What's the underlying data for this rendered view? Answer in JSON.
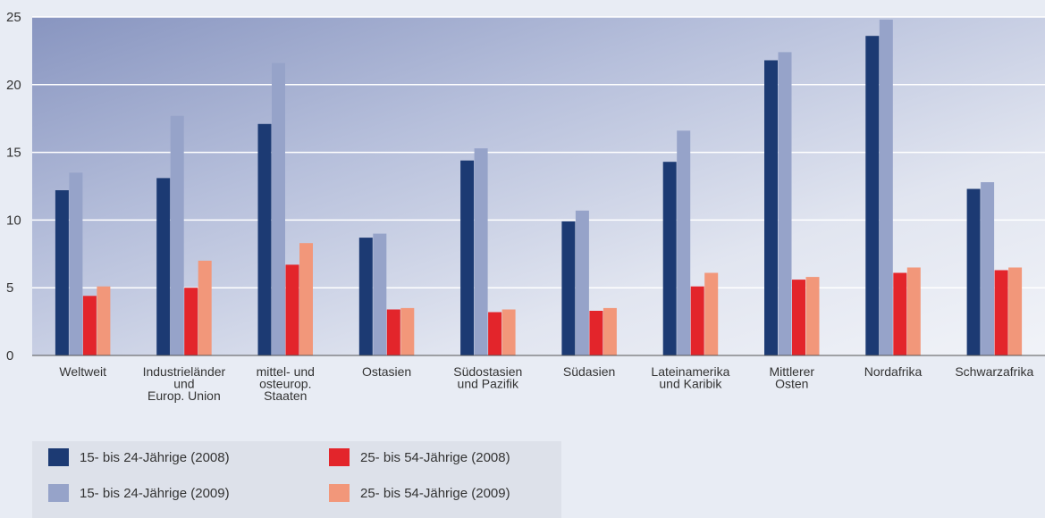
{
  "chart_data": {
    "type": "bar",
    "categories": [
      "Weltweit",
      "Industrieländer und Europ. Union",
      "mittel- und osteurop. Staaten",
      "Ostasien",
      "Südostasien und Pazifik",
      "Südasien",
      "Lateinamerika und Karibik",
      "Mittlerer Osten",
      "Nordafrika",
      "Schwarzafrika"
    ],
    "category_lines": [
      [
        "Weltweit"
      ],
      [
        "Industrieländer",
        "und",
        "Europ. Union"
      ],
      [
        "mittel- und",
        "osteurop.",
        "Staaten"
      ],
      [
        "Ostasien"
      ],
      [
        "Südostasien",
        "und Pazifik"
      ],
      [
        "Südasien"
      ],
      [
        "Lateinamerika",
        "und Karibik"
      ],
      [
        "Mittlerer",
        "Osten"
      ],
      [
        "Nordafrika"
      ],
      [
        "Schwarzafrika"
      ]
    ],
    "series": [
      {
        "name": "15- bis 24-Jährige (2008)",
        "color": "#1c3a73",
        "values": [
          12.2,
          13.1,
          17.1,
          8.7,
          14.4,
          9.9,
          14.3,
          21.8,
          23.6,
          12.3
        ]
      },
      {
        "name": "15- bis 24-Jährige (2009)",
        "color": "#96a3c9",
        "values": [
          13.5,
          17.7,
          21.6,
          9.0,
          15.3,
          10.7,
          16.6,
          22.4,
          24.8,
          12.8
        ]
      },
      {
        "name": "25- bis 54-Jährige (2008)",
        "color": "#e3252b",
        "values": [
          4.4,
          5.0,
          6.7,
          3.4,
          3.2,
          3.3,
          5.1,
          5.6,
          6.1,
          6.3
        ]
      },
      {
        "name": "25- bis 54-Jährige (2009)",
        "color": "#f2977a",
        "values": [
          5.1,
          7.0,
          8.3,
          3.5,
          3.4,
          3.5,
          6.1,
          5.8,
          6.5,
          6.5
        ]
      }
    ],
    "ylim": [
      0,
      25
    ],
    "yticks": [
      0,
      5,
      10,
      15,
      20,
      25
    ],
    "grid": true,
    "legend_position": "bottom-left",
    "title": "",
    "xlabel": "",
    "ylabel": ""
  }
}
